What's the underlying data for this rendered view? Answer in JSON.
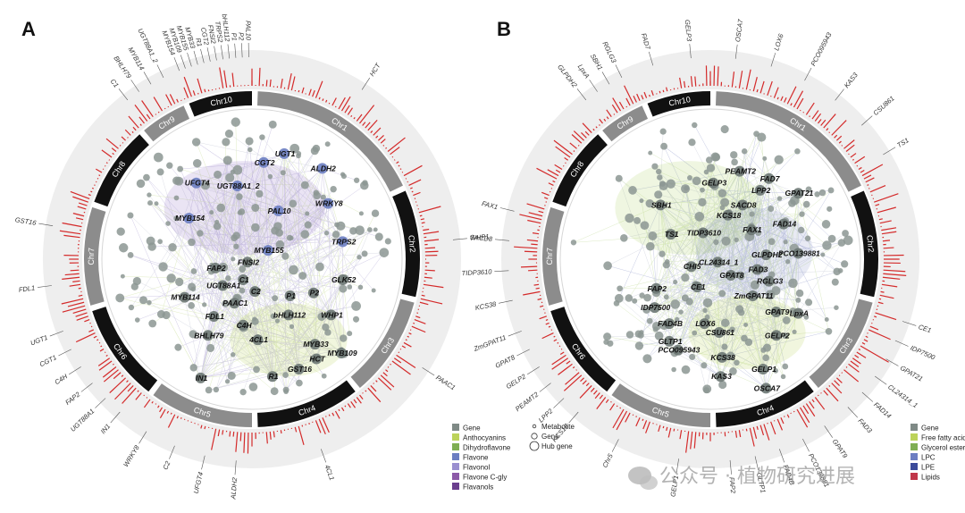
{
  "watermark": "公众号 · 植物研究进展",
  "colors": {
    "chr_dark": "#111111",
    "chr_gray": "#8c8c8c",
    "ring_bg": "#eeeeee",
    "histogram": "#d42a2a",
    "edge": "#9aa0b8"
  },
  "panels": [
    {
      "letter": "A",
      "chromosomes": [
        "Chr1",
        "Chr2",
        "Chr3",
        "Chr4",
        "Chr5",
        "Chr6",
        "Chr7",
        "Chr8",
        "Chr9",
        "Chr10"
      ],
      "outer_genes": [
        {
          "chr": "Chr10",
          "labels": [
            "MYB154",
            "MYB109",
            "MYB155",
            "MYB33",
            "R1",
            "CGT2",
            "FNSI2",
            "TRPS2",
            "bHLH112",
            "P1",
            "P2",
            "PAL10"
          ]
        },
        {
          "chr": "Chr1",
          "labels": [
            "HCT"
          ]
        },
        {
          "chr": "Chr2",
          "labels": [
            "WHP1"
          ]
        },
        {
          "chr": "Chr3",
          "labels": [
            "PAAC1"
          ]
        },
        {
          "chr": "Chr4",
          "labels": [
            "4CL1"
          ]
        },
        {
          "chr": "Chr5",
          "labels": [
            "ALDH2",
            "UFGT4",
            "C2",
            "WRKY8"
          ]
        },
        {
          "chr": "Chr6",
          "labels": [
            "IN1",
            "UGT88A1",
            "FAP2",
            "C4H",
            "CGT1",
            "UGT1"
          ]
        },
        {
          "chr": "Chr7",
          "labels": [
            "FDL1",
            "GST16"
          ]
        },
        {
          "chr": "Chr9",
          "labels": [
            "C1",
            "BHLH79",
            "MYB114",
            "UGT88A1_2"
          ]
        }
      ],
      "nodes": [
        {
          "label": "CGT2",
          "hub": true,
          "cat": "flavone"
        },
        {
          "label": "UGT1",
          "hub": true,
          "cat": "flavone"
        },
        {
          "label": "ALDH2",
          "hub": true,
          "cat": "flavone"
        },
        {
          "label": "UFGT4",
          "hub": true,
          "cat": "flavone"
        },
        {
          "label": "UGT88A1_2",
          "hub": true,
          "cat": "flavone"
        },
        {
          "label": "WRKY8",
          "hub": true,
          "cat": "flavone"
        },
        {
          "label": "PAL10",
          "hub": true,
          "cat": "flavone"
        },
        {
          "label": "MYB154",
          "hub": true,
          "cat": "flavone"
        },
        {
          "label": "MYB155",
          "hub": true,
          "cat": "flavone"
        },
        {
          "label": "TRPS2",
          "hub": true,
          "cat": "flavone"
        },
        {
          "label": "FNSI2",
          "hub": true,
          "cat": "gene"
        },
        {
          "label": "FAP2",
          "hub": true,
          "cat": "gene"
        },
        {
          "label": "C1",
          "hub": true,
          "cat": "gene"
        },
        {
          "label": "GLK52",
          "hub": true,
          "cat": "gene"
        },
        {
          "label": "C2",
          "hub": true,
          "cat": "gene"
        },
        {
          "label": "UGT88A1",
          "hub": true,
          "cat": "gene"
        },
        {
          "label": "P1",
          "hub": true,
          "cat": "gene"
        },
        {
          "label": "P2",
          "hub": true,
          "cat": "gene"
        },
        {
          "label": "MYB114",
          "hub": true,
          "cat": "gene"
        },
        {
          "label": "PAAC1",
          "hub": true,
          "cat": "gene"
        },
        {
          "label": "FDL1",
          "hub": true,
          "cat": "gene"
        },
        {
          "label": "bHLH112",
          "hub": true,
          "cat": "gene"
        },
        {
          "label": "WHP1",
          "hub": true,
          "cat": "gene"
        },
        {
          "label": "C4H",
          "hub": true,
          "cat": "gene"
        },
        {
          "label": "BHLH79",
          "hub": true,
          "cat": "gene"
        },
        {
          "label": "4CL1",
          "hub": true,
          "cat": "gene"
        },
        {
          "label": "MYB33",
          "hub": true,
          "cat": "gene"
        },
        {
          "label": "HCT",
          "hub": true,
          "cat": "gene"
        },
        {
          "label": "MYB109",
          "hub": true,
          "cat": "gene"
        },
        {
          "label": "GST16",
          "hub": true,
          "cat": "gene"
        },
        {
          "label": "R1",
          "hub": true,
          "cat": "gene"
        },
        {
          "label": "IN1",
          "hub": true,
          "cat": "gene"
        }
      ],
      "legend": [
        {
          "label": "Gene",
          "color": "#7f8a86"
        },
        {
          "label": "Anthocyanins",
          "color": "#bcd35a"
        },
        {
          "label": "Dihydroflavone",
          "color": "#7fae53"
        },
        {
          "label": "Flavone",
          "color": "#6c7ec2"
        },
        {
          "label": "Flavonol",
          "color": "#9a8fd0"
        },
        {
          "label": "Flavone C-gly",
          "color": "#8c5aa8"
        },
        {
          "label": "Flavanols",
          "color": "#6b3f8e"
        }
      ],
      "legend_shapes": [
        "Metabolite",
        "Gene",
        "Hub gene"
      ]
    },
    {
      "letter": "B",
      "chromosomes": [
        "Chr1",
        "Chr2",
        "Chr3",
        "Chr4",
        "Chr5",
        "Chr6",
        "Chr7",
        "Chr8",
        "Chr9",
        "Chr10"
      ],
      "outer_genes": [
        {
          "chr": "Chr10",
          "labels": [
            "FAD7",
            "GELP3"
          ]
        },
        {
          "chr": "Chr1",
          "labels": [
            "OSCA7",
            "LOX6",
            "PCO095943",
            "KAS3",
            "CSU861",
            "TS1"
          ]
        },
        {
          "chr": "Chr3",
          "labels": [
            "CE1",
            "IDP7500",
            "GPAT21",
            "CL24314_1",
            "FAD14",
            "FAD3"
          ]
        },
        {
          "chr": "Chr4",
          "labels": [
            "GPAT9",
            "PCO139881",
            "FAD4B",
            "GLTP1",
            "FAP2"
          ]
        },
        {
          "chr": "Chr5",
          "labels": [
            "GELP1",
            "Chr5"
          ]
        },
        {
          "chr": "Chr6",
          "labels": [
            "KCS18",
            "LPP2",
            "PEAMT2",
            "GELP2",
            "GPAT8",
            "ZmGPAT11"
          ]
        },
        {
          "chr": "Chr7",
          "labels": [
            "KCS38",
            "TIDP3610",
            "SACD8",
            "FAX1"
          ]
        },
        {
          "chr": "Chr9",
          "labels": [
            "GLPDH2",
            "LpxA",
            "SBH1",
            "RGLG3"
          ]
        }
      ],
      "nodes": [
        {
          "label": "FAD7",
          "hub": true,
          "cat": "gene"
        },
        {
          "label": "GELP3",
          "hub": true,
          "cat": "gene"
        },
        {
          "label": "PEAMT2",
          "hub": true,
          "cat": "gene"
        },
        {
          "label": "LPP2",
          "hub": true,
          "cat": "gene"
        },
        {
          "label": "GPAT21",
          "hub": true,
          "cat": "gene"
        },
        {
          "label": "SBH1",
          "hub": true,
          "cat": "gene"
        },
        {
          "label": "SACD8",
          "hub": true,
          "cat": "gene"
        },
        {
          "label": "KCS18",
          "hub": true,
          "cat": "gene"
        },
        {
          "label": "FAD14",
          "hub": true,
          "cat": "gene"
        },
        {
          "label": "TS1",
          "hub": true,
          "cat": "gene"
        },
        {
          "label": "TIDP3610",
          "hub": true,
          "cat": "gene"
        },
        {
          "label": "FAX1",
          "hub": true,
          "cat": "gene"
        },
        {
          "label": "GLPDH2",
          "hub": true,
          "cat": "gene"
        },
        {
          "label": "PCO139881",
          "hub": true,
          "cat": "gene"
        },
        {
          "label": "CHI5",
          "hub": true,
          "cat": "gene"
        },
        {
          "label": "CL24314_1",
          "hub": true,
          "cat": "gene"
        },
        {
          "label": "FAD3",
          "hub": true,
          "cat": "gene"
        },
        {
          "label": "GPAT8",
          "hub": true,
          "cat": "gene"
        },
        {
          "label": "RGLG3",
          "hub": true,
          "cat": "gene"
        },
        {
          "label": "FAP2",
          "hub": true,
          "cat": "gene"
        },
        {
          "label": "CE1",
          "hub": true,
          "cat": "gene"
        },
        {
          "label": "ZmGPAT11",
          "hub": true,
          "cat": "gene"
        },
        {
          "label": "IDP7500",
          "hub": true,
          "cat": "gene"
        },
        {
          "label": "GPAT9",
          "hub": true,
          "cat": "gene"
        },
        {
          "label": "LpxA",
          "hub": true,
          "cat": "gene"
        },
        {
          "label": "FAD4B",
          "hub": true,
          "cat": "gene"
        },
        {
          "label": "LOX6",
          "hub": true,
          "cat": "gene"
        },
        {
          "label": "CSU861",
          "hub": true,
          "cat": "gene"
        },
        {
          "label": "GLTP1",
          "hub": true,
          "cat": "gene"
        },
        {
          "label": "GELP2",
          "hub": true,
          "cat": "gene"
        },
        {
          "label": "PCO095943",
          "hub": true,
          "cat": "gene"
        },
        {
          "label": "KCS38",
          "hub": true,
          "cat": "gene"
        },
        {
          "label": "GELP1",
          "hub": true,
          "cat": "gene"
        },
        {
          "label": "KAS3",
          "hub": true,
          "cat": "gene"
        },
        {
          "label": "OSCA7",
          "hub": true,
          "cat": "gene"
        }
      ],
      "legend": [
        {
          "label": "Gene",
          "color": "#7f8a86"
        },
        {
          "label": "Free fatty acids",
          "color": "#bcd35a"
        },
        {
          "label": "Glycerol ester",
          "color": "#7fae53"
        },
        {
          "label": "LPC",
          "color": "#6c7ec2"
        },
        {
          "label": "LPE",
          "color": "#3b4a9a"
        },
        {
          "label": "Lipids",
          "color": "#c0364a"
        }
      ],
      "legend_shapes": [
        "Metabolite",
        "Gene",
        "Hub gene"
      ]
    }
  ]
}
